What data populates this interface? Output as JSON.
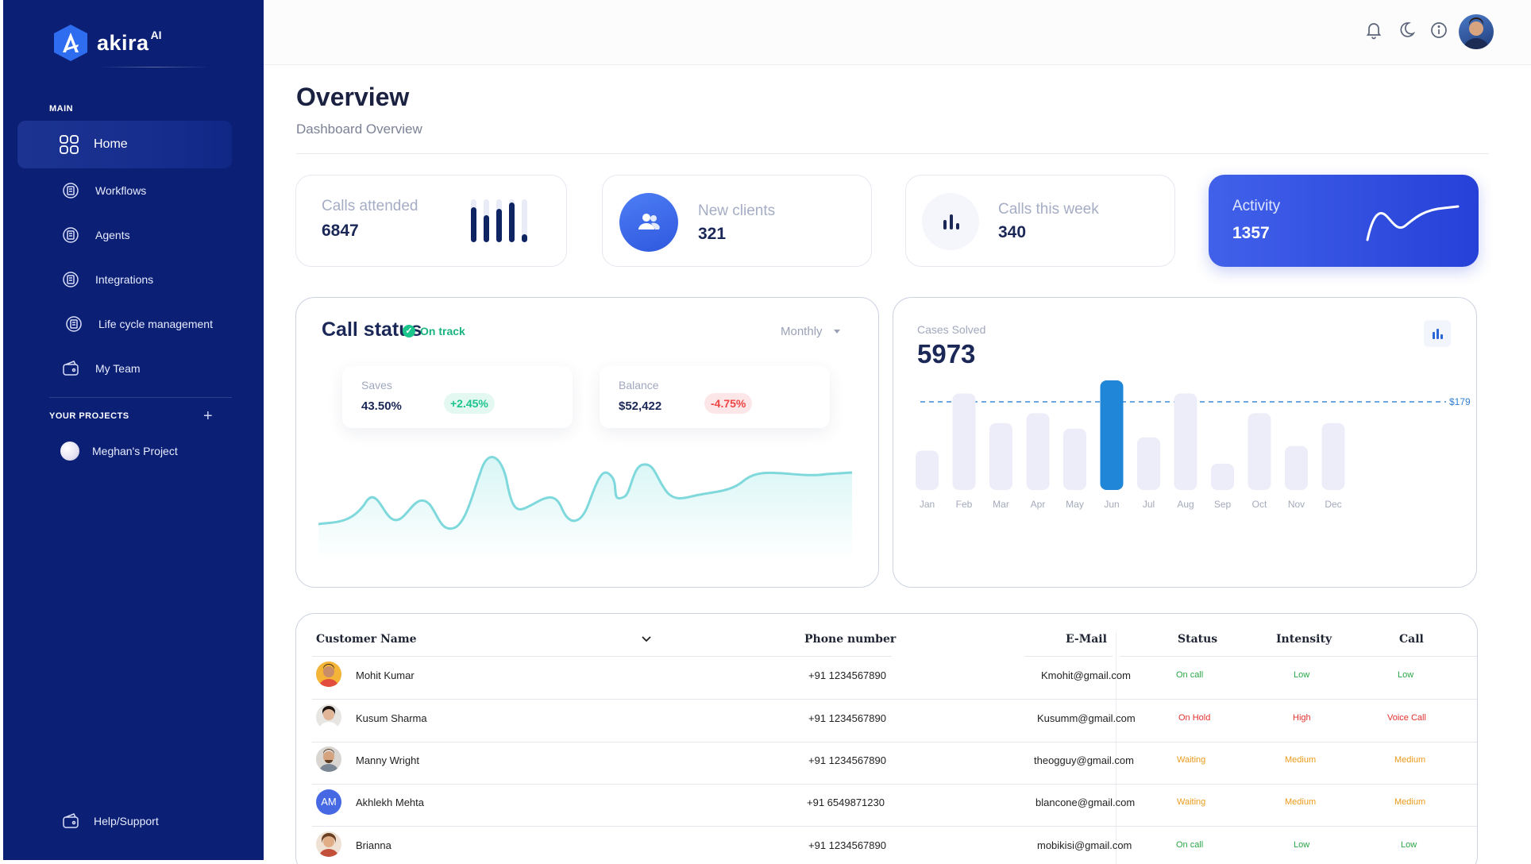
{
  "brand": {
    "name": "akira",
    "suffix": "AI"
  },
  "sidebar": {
    "main_label": "MAIN",
    "items": [
      {
        "label": "Home",
        "icon": "grid-icon"
      },
      {
        "label": "Workflows",
        "icon": "workflow-icon"
      },
      {
        "label": "Agents",
        "icon": "agents-icon"
      },
      {
        "label": "Integrations",
        "icon": "integrations-icon"
      },
      {
        "label": "Life cycle management",
        "icon": "lifecycle-icon"
      },
      {
        "label": "My Team",
        "icon": "wallet-icon"
      }
    ],
    "projects_label": "YOUR PROJECTS",
    "project": "Meghan's Project",
    "help": "Help/Support"
  },
  "header": {
    "icons": [
      "bell-icon",
      "moon-icon",
      "info-icon",
      "user-avatar"
    ]
  },
  "page": {
    "title": "Overview",
    "subtitle": "Dashboard Overview"
  },
  "stats": [
    {
      "title": "Calls attended",
      "value": "6847"
    },
    {
      "title": "New clients",
      "value": "321"
    },
    {
      "title": "Calls this week",
      "value": "340"
    },
    {
      "title": "Activity",
      "value": "1357"
    }
  ],
  "call_status": {
    "title": "Call status",
    "badge": "On track",
    "period": "Monthly",
    "saves": {
      "label": "Saves",
      "value": "43.50%",
      "change": "+2.45%"
    },
    "balance": {
      "label": "Balance",
      "value": "$52,422",
      "change": "-4.75%"
    }
  },
  "cases": {
    "label": "Cases Solved",
    "value": "5973",
    "threshold_label": "$179"
  },
  "chart_data": {
    "type": "bar",
    "categories": [
      "Jan",
      "Feb",
      "Mar",
      "Apr",
      "May",
      "Jun",
      "Jul",
      "Aug",
      "Sep",
      "Oct",
      "Nov",
      "Dec"
    ],
    "values": [
      36,
      88,
      61,
      70,
      56,
      100,
      48,
      88,
      24,
      70,
      40,
      61
    ],
    "highlight": "Jun",
    "threshold": "$179"
  },
  "table": {
    "headers": [
      "Customer Name",
      "Phone number",
      "E-Mail",
      "Status",
      "Intensity",
      "Call"
    ],
    "rows": [
      {
        "name": "Mohit Kumar",
        "phone": "+91 1234567890",
        "email": "Kmohit@gmail.com",
        "status": "On call",
        "intensity": "Low",
        "call": "Low"
      },
      {
        "name": "Kusum Sharma",
        "phone": "+91 1234567890",
        "email": "Kusumm@gmail.com",
        "status": "On Hold",
        "intensity": "High",
        "call": "Voice Call"
      },
      {
        "name": "Manny Wright",
        "phone": "+91 1234567890",
        "email": "theogguy@gmail.com",
        "status": "Waiting",
        "intensity": "Medium",
        "call": "Medium"
      },
      {
        "name": "Akhlekh Mehta",
        "initials": "AM",
        "phone": "+91 6549871230",
        "email": "blancone@gmail.com",
        "status": "Waiting",
        "intensity": "Medium",
        "call": "Medium"
      },
      {
        "name": "Brianna",
        "phone": "+91 1234567890",
        "email": "mobikisi@gmail.com",
        "status": "On call",
        "intensity": "Low",
        "call": "Low"
      }
    ]
  },
  "colors": {
    "sidebar": "#0b1f75",
    "accent": "#2641d8",
    "bar_highlight": "#1f86d8",
    "bar": "#ecedf8",
    "green": "#2aa746",
    "red": "#e2312d",
    "orange": "#eb9a1a"
  }
}
